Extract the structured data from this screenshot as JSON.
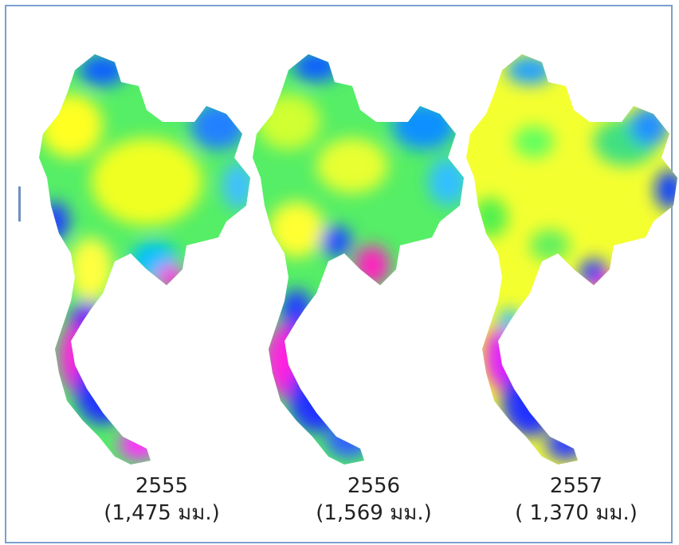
{
  "colors": {
    "border": "#7aa0cf",
    "scale": [
      "#ff00ff",
      "#8000ff",
      "#0000ff",
      "#00ffff",
      "#00ff40",
      "#80ff00",
      "#ffff00"
    ]
  },
  "maps": [
    {
      "year": "2555",
      "rainfall": "(1,475 มม.)",
      "tone": "mixed"
    },
    {
      "year": "2556",
      "rainfall": "(1,569 มม.)",
      "tone": "mixed"
    },
    {
      "year": "2557",
      "rainfall": "( 1,370 มม.)",
      "tone": "dry"
    }
  ]
}
